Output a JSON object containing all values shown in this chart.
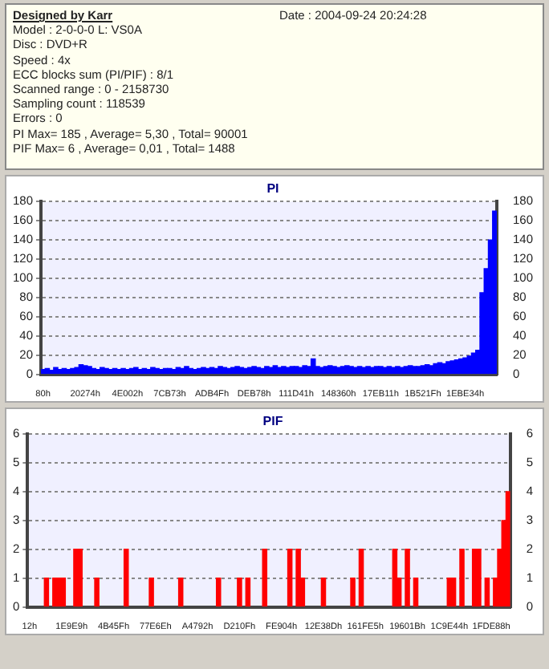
{
  "chart_data": [
    {
      "type": "other",
      "title": "Designed by Karr",
      "annotations": [
        "Date : 2004-09-24 20:24:28",
        "Model : 2-0-0-0 L: VS0A",
        "Disc : DVD+R",
        "Speed : 4x",
        "ECC blocks sum (PI/PIF) : 8/1",
        "Scanned range : 0 - 2158730",
        "Sampling count : 118539",
        "Errors : 0",
        "PI Max= 185 , Average= 5,30 , Total= 90001",
        "PIF Max= 6 , Average= 0,01 , Total= 1488"
      ]
    },
    {
      "type": "bar",
      "title": "PI",
      "color": "#0000ff",
      "grid": "y",
      "categories": [
        "80h",
        null,
        null,
        null,
        null,
        null,
        null,
        null,
        null,
        null,
        "20274h",
        null,
        null,
        null,
        null,
        null,
        null,
        null,
        null,
        null,
        "4E002h",
        null,
        null,
        null,
        null,
        null,
        null,
        null,
        null,
        null,
        "7CB73h",
        null,
        null,
        null,
        null,
        null,
        null,
        null,
        null,
        null,
        "ADB4Fh",
        null,
        null,
        null,
        null,
        null,
        null,
        null,
        null,
        null,
        "DEB78h",
        null,
        null,
        null,
        null,
        null,
        null,
        null,
        null,
        null,
        "111D41h",
        null,
        null,
        null,
        null,
        null,
        null,
        null,
        null,
        null,
        "148360h",
        null,
        null,
        null,
        null,
        null,
        null,
        null,
        null,
        null,
        "17EB11h",
        null,
        null,
        null,
        null,
        null,
        null,
        null,
        null,
        null,
        "1B521Fh",
        null,
        null,
        null,
        null,
        null,
        null,
        null,
        null,
        null,
        "1EBE34h",
        null,
        null,
        null,
        null,
        null,
        null,
        null
      ],
      "values": [
        5,
        6,
        4,
        7,
        5,
        6,
        5,
        6,
        7,
        10,
        9,
        8,
        6,
        5,
        7,
        6,
        5,
        6,
        5,
        6,
        5,
        6,
        7,
        5,
        6,
        5,
        7,
        6,
        5,
        6,
        6,
        5,
        7,
        6,
        8,
        6,
        5,
        6,
        7,
        6,
        7,
        6,
        8,
        7,
        6,
        7,
        8,
        7,
        6,
        7,
        8,
        7,
        6,
        8,
        7,
        9,
        7,
        8,
        7,
        8,
        8,
        7,
        9,
        8,
        16,
        8,
        7,
        8,
        9,
        8,
        7,
        8,
        9,
        8,
        7,
        8,
        7,
        8,
        7,
        8,
        8,
        7,
        8,
        7,
        8,
        7,
        8,
        9,
        8,
        8,
        9,
        10,
        9,
        11,
        12,
        11,
        13,
        14,
        15,
        16,
        17,
        19,
        22,
        25,
        85,
        110,
        140,
        170
      ],
      "ylim": [
        0,
        180
      ],
      "yticks": [
        0,
        20,
        40,
        60,
        80,
        100,
        120,
        140,
        160,
        180
      ],
      "y2lim": [
        0,
        180
      ],
      "y2ticks": [
        0,
        20,
        40,
        60,
        80,
        100,
        120,
        140,
        160,
        180
      ]
    },
    {
      "type": "bar",
      "title": "PIF",
      "color": "#ff0000",
      "grid": "y",
      "categories": [
        "12h",
        null,
        null,
        null,
        null,
        null,
        null,
        null,
        null,
        null,
        "1E9E9h",
        null,
        null,
        null,
        null,
        null,
        null,
        null,
        null,
        null,
        "4B45Fh",
        null,
        null,
        null,
        null,
        null,
        null,
        null,
        null,
        null,
        "77E6Eh",
        null,
        null,
        null,
        null,
        null,
        null,
        null,
        null,
        null,
        "A4792h",
        null,
        null,
        null,
        null,
        null,
        null,
        null,
        null,
        null,
        "D210Fh",
        null,
        null,
        null,
        null,
        null,
        null,
        null,
        null,
        null,
        "FE904h",
        null,
        null,
        null,
        null,
        null,
        null,
        null,
        null,
        null,
        "12E38Dh",
        null,
        null,
        null,
        null,
        null,
        null,
        null,
        null,
        null,
        "161FE5h",
        null,
        null,
        null,
        null,
        null,
        null,
        null,
        null,
        null,
        "19601Bh",
        null,
        null,
        null,
        null,
        null,
        null,
        null,
        null,
        null,
        "1C9E44h",
        null,
        null,
        null,
        null,
        null,
        null,
        null,
        null,
        null,
        "1FDE88h",
        null,
        null,
        null,
        null
      ],
      "values": [
        0,
        0,
        0,
        0,
        1,
        0,
        1,
        1,
        1,
        0,
        0,
        2,
        2,
        0,
        0,
        0,
        1,
        0,
        0,
        0,
        0,
        0,
        0,
        2,
        0,
        0,
        0,
        0,
        0,
        1,
        0,
        0,
        0,
        0,
        0,
        0,
        1,
        0,
        0,
        0,
        0,
        0,
        0,
        0,
        0,
        1,
        0,
        0,
        0,
        0,
        1,
        0,
        1,
        0,
        0,
        0,
        2,
        0,
        0,
        0,
        0,
        0,
        2,
        0,
        2,
        1,
        0,
        0,
        0,
        0,
        1,
        0,
        0,
        0,
        0,
        0,
        0,
        1,
        0,
        2,
        0,
        0,
        0,
        0,
        0,
        0,
        0,
        2,
        1,
        0,
        2,
        0,
        1,
        0,
        0,
        0,
        0,
        0,
        0,
        0,
        1,
        1,
        0,
        2,
        0,
        0,
        2,
        2,
        0,
        1,
        0,
        1,
        2,
        3,
        4
      ],
      "ylim": [
        0,
        6
      ],
      "yticks": [
        0,
        1,
        2,
        3,
        4,
        5,
        6
      ],
      "y2lim": [
        0,
        6
      ],
      "y2ticks": [
        0,
        1,
        2,
        3,
        4,
        5,
        6
      ]
    }
  ]
}
